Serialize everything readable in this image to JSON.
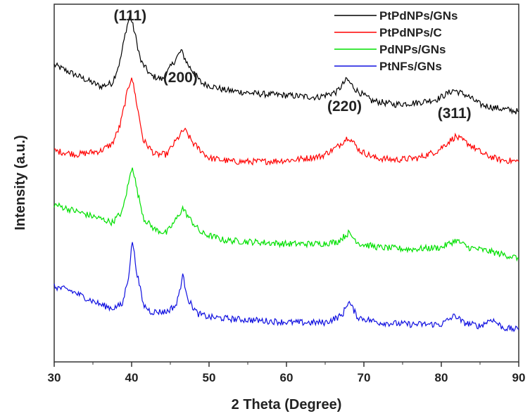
{
  "chart_data": {
    "type": "line",
    "xlabel": "2 Theta (Degree)",
    "ylabel": "Intensity (a.u.)",
    "xlim": [
      30,
      90
    ],
    "x_ticks": [
      30,
      40,
      50,
      60,
      70,
      80,
      90
    ],
    "y_tick_labels": "none",
    "grid": false,
    "legend_position": "top-right",
    "peak_labels": [
      {
        "text": "(111)",
        "x": 39.8
      },
      {
        "text": "(200)",
        "x": 46.3
      },
      {
        "text": "(220)",
        "x": 67.5
      },
      {
        "text": "(311)",
        "x": 81.7
      }
    ],
    "series": [
      {
        "name": "PtPdNPs/GNs",
        "color": "#000000",
        "x": [
          30,
          33,
          36,
          37.5,
          38.5,
          39.3,
          39.8,
          40.4,
          41.2,
          42.5,
          44,
          45.5,
          46.4,
          47.3,
          49,
          52,
          56,
          60,
          64,
          66.5,
          67.8,
          69,
          71,
          74,
          77,
          79.5,
          81.6,
          83.3,
          85,
          87,
          90
        ],
        "y": [
          0.83,
          0.8,
          0.77,
          0.78,
          0.84,
          0.93,
          0.97,
          0.92,
          0.84,
          0.8,
          0.79,
          0.84,
          0.87,
          0.83,
          0.78,
          0.76,
          0.75,
          0.745,
          0.74,
          0.755,
          0.79,
          0.76,
          0.73,
          0.72,
          0.725,
          0.735,
          0.76,
          0.745,
          0.72,
          0.71,
          0.7
        ]
      },
      {
        "name": "PtPdNPs/C",
        "color": "#ff0000",
        "x": [
          30,
          33,
          36,
          37.5,
          38.5,
          39.4,
          40.0,
          40.6,
          41.5,
          43,
          44.5,
          45.8,
          46.8,
          48,
          50,
          53,
          57,
          61,
          64.5,
          66.5,
          68.0,
          69.5,
          71.5,
          74,
          77,
          79.5,
          81.8,
          83.5,
          85.5,
          87.5,
          90
        ],
        "y": [
          0.59,
          0.58,
          0.59,
          0.61,
          0.66,
          0.75,
          0.8,
          0.73,
          0.62,
          0.58,
          0.58,
          0.62,
          0.65,
          0.61,
          0.57,
          0.56,
          0.56,
          0.565,
          0.575,
          0.6,
          0.63,
          0.59,
          0.57,
          0.565,
          0.57,
          0.59,
          0.63,
          0.61,
          0.58,
          0.565,
          0.56
        ]
      },
      {
        "name": "PdNPs/GNs",
        "color": "#00e000",
        "x": [
          30,
          33,
          36,
          37.5,
          38.8,
          39.6,
          40.1,
          40.7,
          41.6,
          43,
          44.5,
          45.8,
          46.6,
          47.5,
          49,
          52,
          56,
          60,
          64,
          66.5,
          68.0,
          69.5,
          72,
          76,
          80,
          81.9,
          83.5,
          86,
          88,
          90
        ],
        "y": [
          0.44,
          0.42,
          0.4,
          0.39,
          0.42,
          0.5,
          0.55,
          0.48,
          0.4,
          0.37,
          0.36,
          0.4,
          0.43,
          0.4,
          0.36,
          0.34,
          0.335,
          0.33,
          0.33,
          0.335,
          0.36,
          0.33,
          0.32,
          0.315,
          0.32,
          0.34,
          0.32,
          0.31,
          0.3,
          0.29
        ]
      },
      {
        "name": "PtNFs/GNs",
        "color": "#1010e0",
        "x": [
          30,
          32,
          34,
          36,
          37.5,
          38.8,
          39.6,
          40.1,
          40.6,
          41.5,
          42.5,
          44.5,
          45.8,
          46.6,
          47.4,
          48.5,
          50,
          53,
          57,
          61,
          65,
          67.2,
          68.0,
          69.2,
          72,
          76,
          80,
          81.8,
          82.8,
          85,
          86.5,
          88,
          90
        ],
        "y": [
          0.21,
          0.2,
          0.18,
          0.16,
          0.15,
          0.16,
          0.24,
          0.34,
          0.26,
          0.16,
          0.14,
          0.14,
          0.16,
          0.24,
          0.17,
          0.135,
          0.125,
          0.12,
          0.115,
          0.11,
          0.11,
          0.13,
          0.17,
          0.125,
          0.11,
          0.105,
          0.105,
          0.13,
          0.11,
          0.1,
          0.12,
          0.095,
          0.09
        ]
      }
    ]
  }
}
